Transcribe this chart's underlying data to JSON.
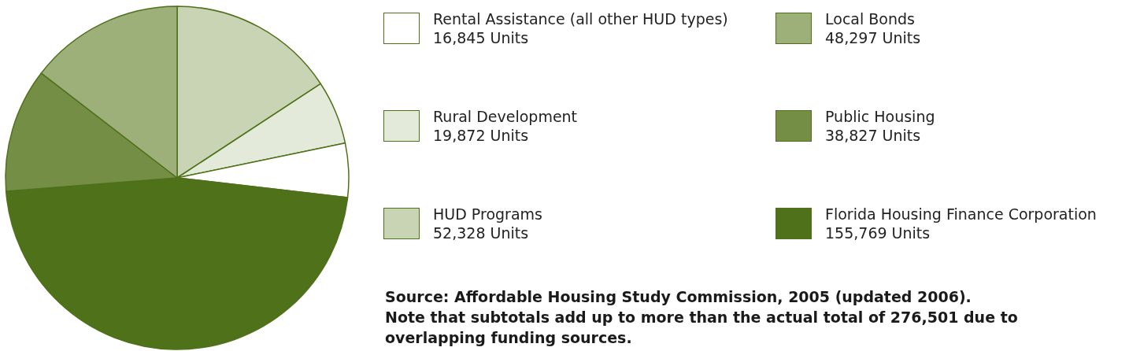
{
  "chart_data": {
    "type": "pie",
    "categories": [
      "HUD Programs",
      "Rural Development",
      "Rental Assistance (all other HUD types)",
      "Florida Housing Finance Corporation",
      "Public Housing",
      "Local Bonds"
    ],
    "values": [
      52328,
      19872,
      16845,
      155769,
      38827,
      48297
    ],
    "value_labels": [
      "52,328 Units",
      "19,872 Units",
      "16,845 Units",
      "155,769 Units",
      "38,827 Units",
      "48,297 Units"
    ],
    "colors": [
      "#c8d4b4",
      "#e4ead9",
      "#ffffff",
      "#4e7119",
      "#748f45",
      "#9db07a"
    ],
    "legend": "right",
    "annotations": [
      "Source: Affordable Housing Study Commission, 2005 (updated 2006).",
      "Note that subtotals add up to more than the actual total of 276,501 due to overlapping funding sources."
    ]
  }
}
